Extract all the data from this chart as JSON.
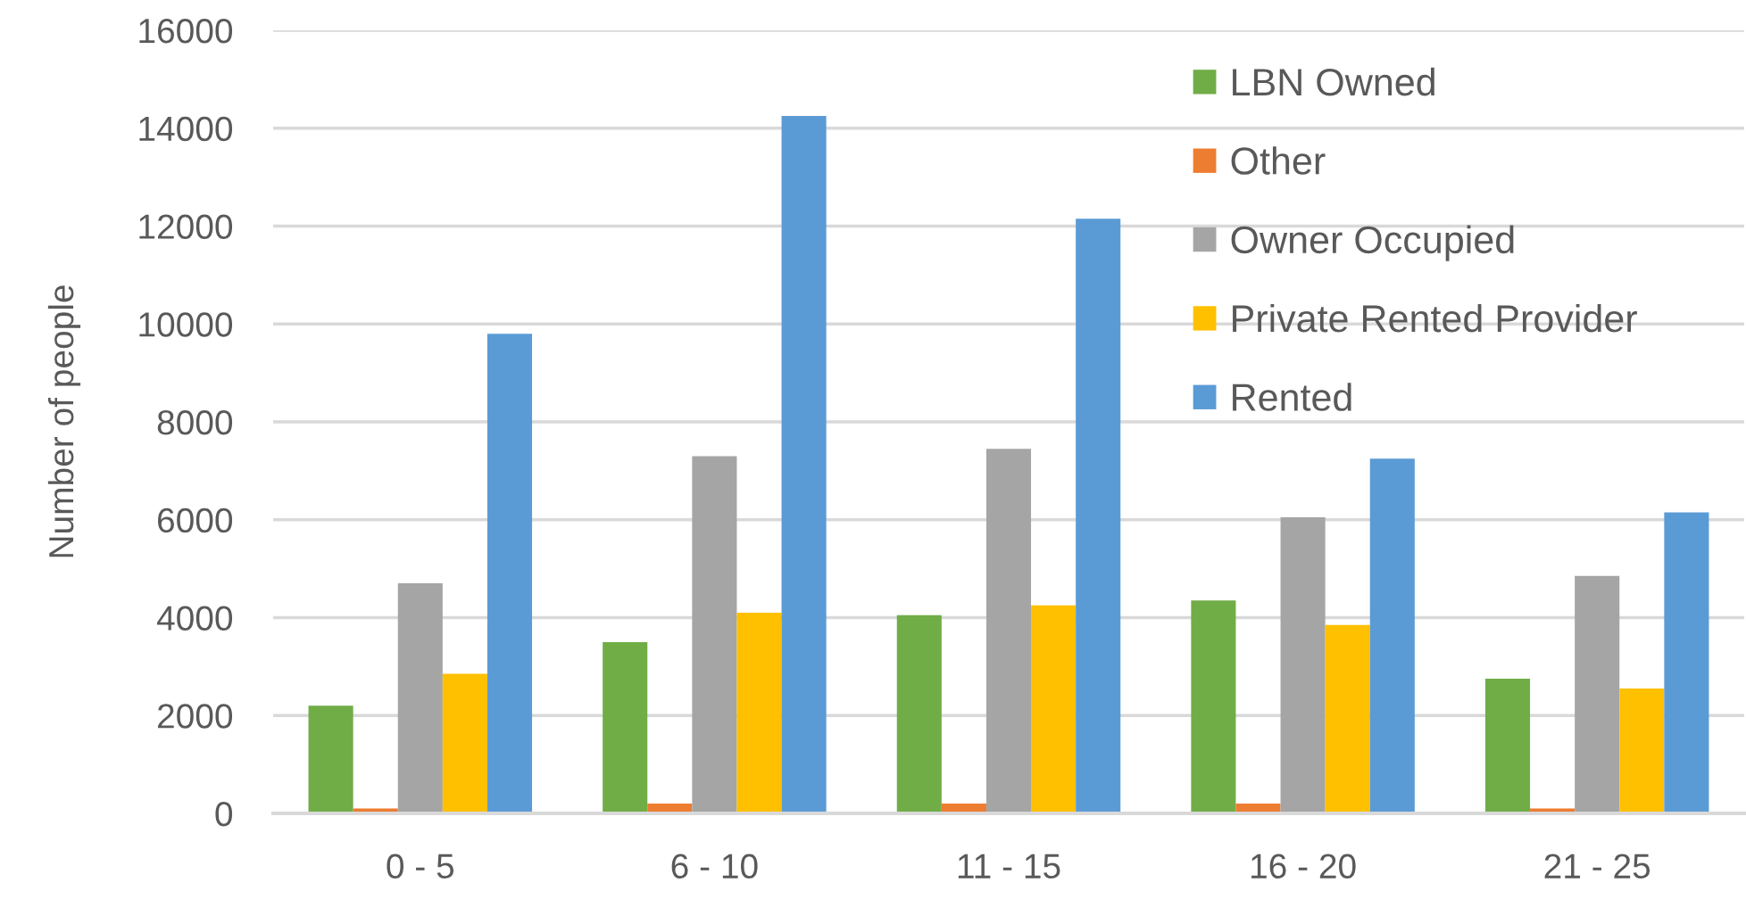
{
  "chart_data": {
    "type": "bar",
    "ylabel": "Number of people",
    "categories": [
      "0 - 5",
      "6 - 10",
      "11 - 15",
      "16 - 20",
      "21 - 25"
    ],
    "series": [
      {
        "name": "LBN Owned",
        "color": "#70ad47",
        "values": [
          2200,
          3500,
          4050,
          4350,
          2750
        ]
      },
      {
        "name": "Other",
        "color": "#ed7d31",
        "values": [
          100,
          200,
          200,
          200,
          100
        ]
      },
      {
        "name": "Owner Occupied",
        "color": "#a5a5a5",
        "values": [
          4700,
          7300,
          7450,
          6050,
          4850
        ]
      },
      {
        "name": "Private Rented Provider",
        "color": "#ffc000",
        "values": [
          2850,
          4100,
          4250,
          3850,
          2550
        ]
      },
      {
        "name": "Rented",
        "color": "#5b9bd5",
        "values": [
          9800,
          14250,
          12150,
          7250,
          6150
        ]
      }
    ],
    "ylim": [
      0,
      16000
    ],
    "yticks": [
      0,
      2000,
      4000,
      6000,
      8000,
      10000,
      12000,
      14000,
      16000
    ],
    "grid": "y",
    "legend": "top right"
  }
}
